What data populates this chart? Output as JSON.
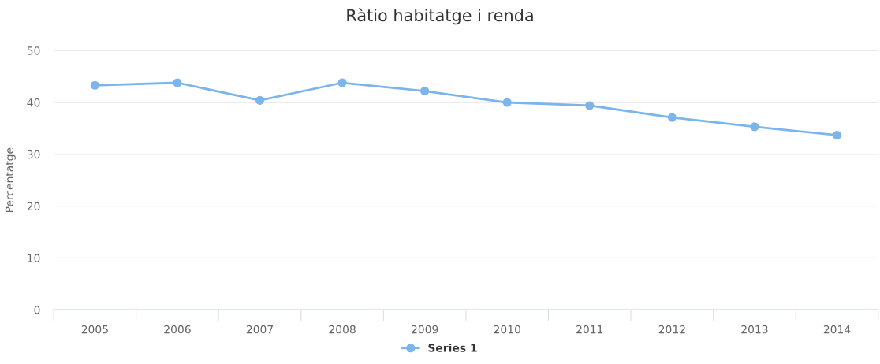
{
  "chart_data": {
    "type": "line",
    "title": "Ràtio habitatge i renda",
    "ylabel": "Percentatge",
    "categories": [
      "2005",
      "2006",
      "2007",
      "2008",
      "2009",
      "2010",
      "2011",
      "2012",
      "2013",
      "2014"
    ],
    "series": [
      {
        "name": "Series 1",
        "color": "#7cb5ec",
        "values": [
          43.3,
          43.8,
          40.4,
          43.8,
          42.2,
          40.0,
          39.4,
          37.1,
          35.3,
          33.7
        ]
      }
    ],
    "ylim": [
      0,
      50
    ],
    "yticks": [
      0,
      10,
      20,
      30,
      40,
      50
    ],
    "grid": "y",
    "legend": "bottom",
    "marker": "circle",
    "line_style": "solid"
  }
}
